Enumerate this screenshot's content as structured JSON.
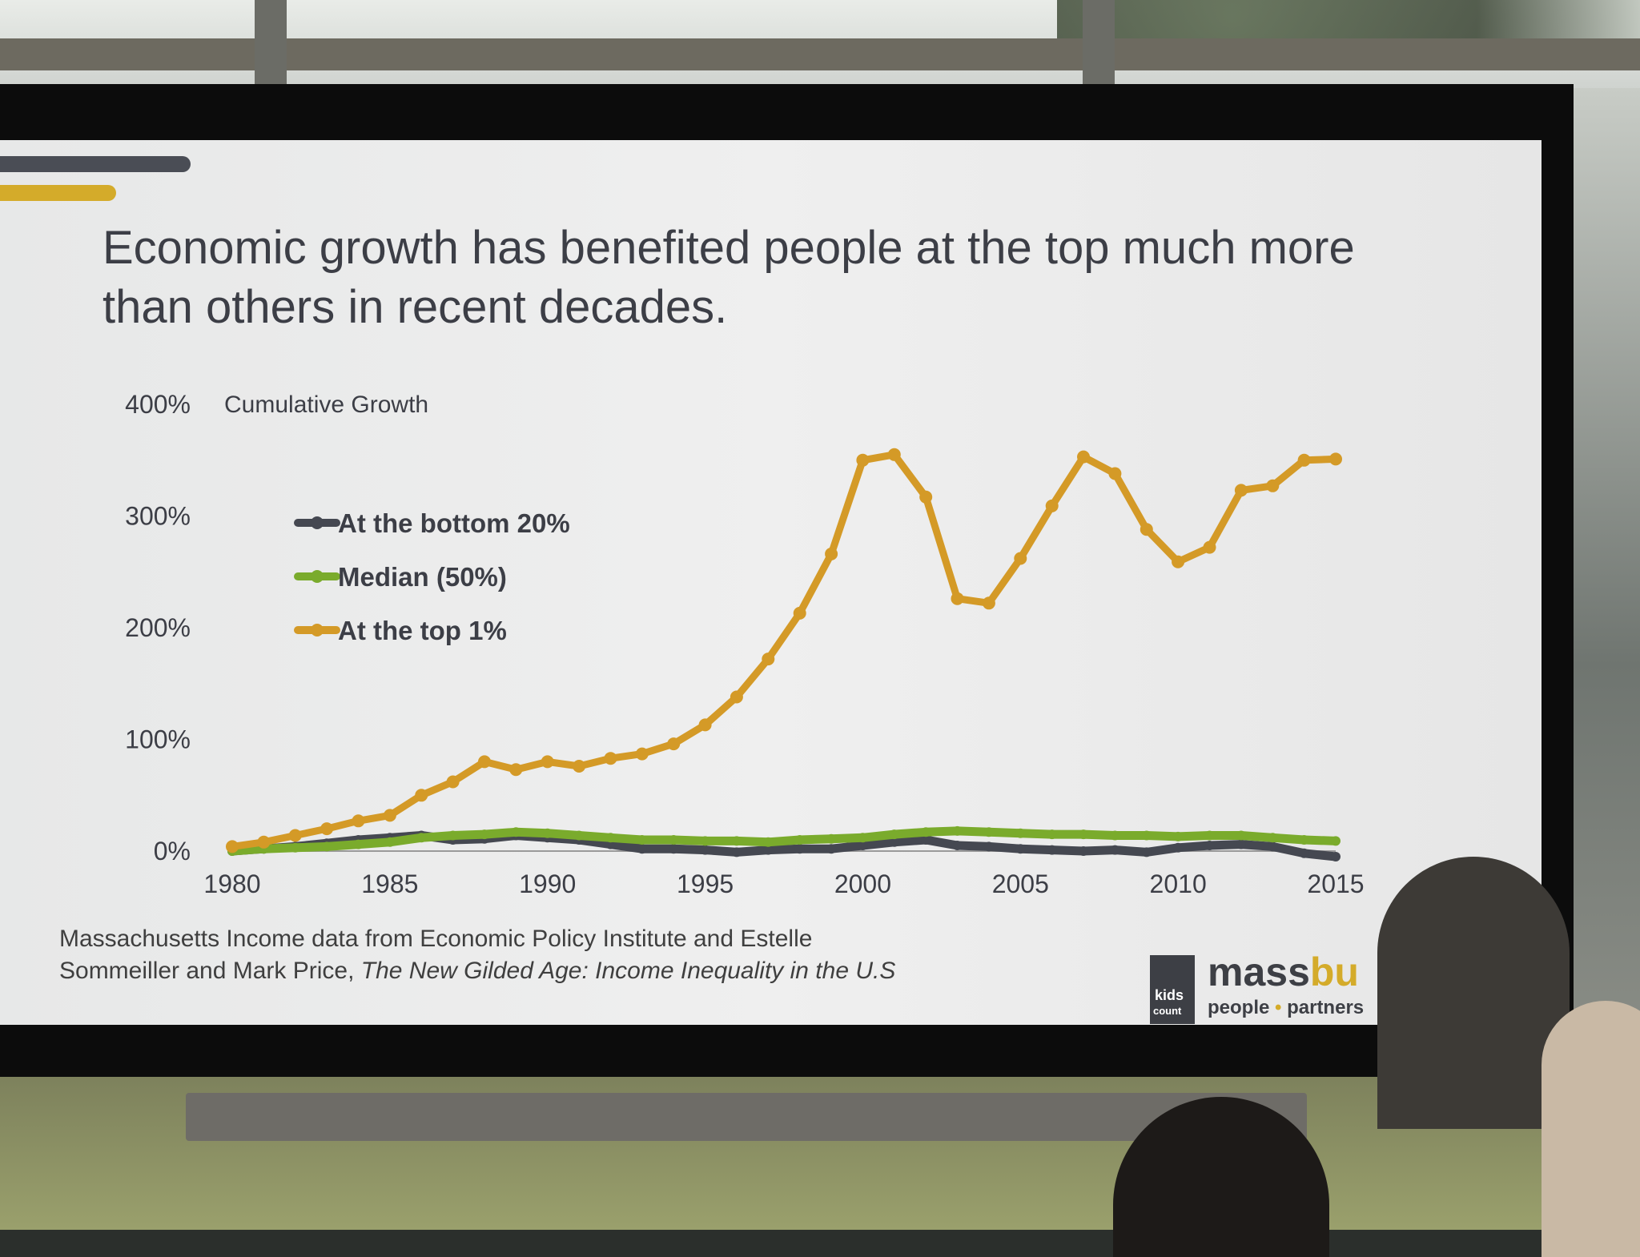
{
  "slide": {
    "title_line1": "Economic growth has benefited people at the top much more",
    "title_line2": "than others in recent decades.",
    "source_line1": "Massachusetts Income data from Economic Policy Institute and Estelle",
    "source_line2_a": "Sommeiller and Mark Price, ",
    "source_line2_b": "The New Gilded Age: Income Inequality in the U.S",
    "logo_name_a": "mass",
    "logo_name_b": "bu",
    "logo_box_line1": "kids",
    "logo_box_line2": "count",
    "logo_tag_a": "people",
    "logo_tag_b": "partners"
  },
  "colors": {
    "top1": "#d49a27",
    "median": "#7aab2c",
    "bottom20": "#454851",
    "accent_yellow": "#d4ab2a",
    "accent_gray": "#4a4d55"
  },
  "chart_data": {
    "type": "line",
    "title": "Cumulative Growth",
    "xlabel": "",
    "ylabel": "",
    "x_ticks": [
      "1980",
      "1985",
      "1990",
      "1995",
      "2000",
      "2005",
      "2010",
      "2015"
    ],
    "y_ticks": [
      "0%",
      "100%",
      "200%",
      "300%",
      "400%"
    ],
    "ylim": [
      0,
      400
    ],
    "xlim": [
      1980,
      2015
    ],
    "legend_position": "left",
    "x": [
      1980,
      1981,
      1982,
      1983,
      1984,
      1985,
      1986,
      1987,
      1988,
      1989,
      1990,
      1991,
      1992,
      1993,
      1994,
      1995,
      1996,
      1997,
      1998,
      1999,
      2000,
      2001,
      2002,
      2003,
      2004,
      2005,
      2006,
      2007,
      2008,
      2009,
      2010,
      2011,
      2012,
      2013,
      2014,
      2015
    ],
    "series": [
      {
        "name": "At the bottom 20%",
        "color_key": "bottom20",
        "values": [
          0,
          2,
          4,
          7,
          10,
          12,
          14,
          10,
          11,
          14,
          12,
          10,
          6,
          2,
          2,
          1,
          -1,
          1,
          2,
          2,
          5,
          8,
          10,
          5,
          4,
          2,
          1,
          0,
          1,
          -1,
          3,
          5,
          6,
          4,
          -2,
          -5
        ]
      },
      {
        "name": "Median (50%)",
        "color_key": "median",
        "values": [
          0,
          2,
          3,
          4,
          6,
          8,
          12,
          14,
          15,
          17,
          16,
          14,
          12,
          10,
          10,
          9,
          9,
          8,
          10,
          11,
          12,
          15,
          17,
          18,
          17,
          16,
          15,
          15,
          14,
          14,
          13,
          14,
          14,
          12,
          10,
          9
        ]
      },
      {
        "name": "At the top 1%",
        "color_key": "top1",
        "values": [
          4,
          8,
          14,
          20,
          27,
          32,
          50,
          62,
          80,
          73,
          80,
          76,
          83,
          87,
          96,
          113,
          138,
          172,
          213,
          266,
          350,
          355,
          317,
          226,
          222,
          262,
          309,
          353,
          338,
          288,
          259,
          272,
          323,
          327,
          350,
          351
        ]
      }
    ]
  }
}
